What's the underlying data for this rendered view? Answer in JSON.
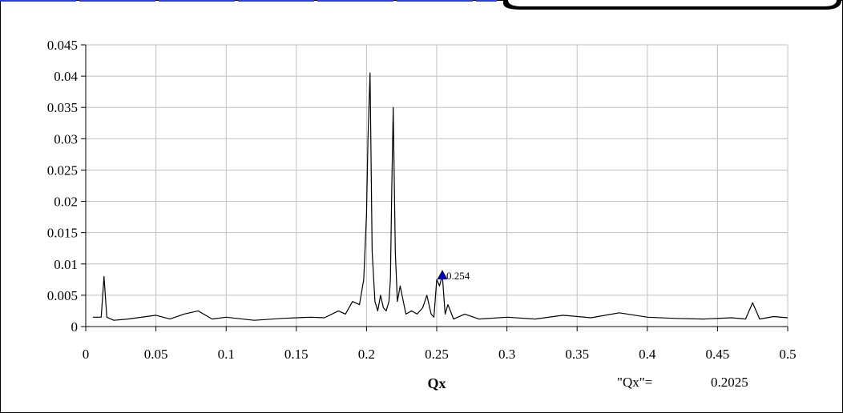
{
  "chart_data": {
    "type": "line",
    "title": "",
    "xlabel": "Qx",
    "ylabel": "",
    "xlim": [
      0,
      0.5
    ],
    "ylim": [
      0,
      0.045
    ],
    "x_ticks": [
      "0",
      "0.05",
      "0.1",
      "0.15",
      "0.2",
      "0.25",
      "0.3",
      "0.35",
      "0.4",
      "0.45",
      "0.5"
    ],
    "y_ticks": [
      "0",
      "0.005",
      "0.01",
      "0.015",
      "0.02",
      "0.025",
      "0.03",
      "0.035",
      "0.04",
      "0.045"
    ],
    "grid": true,
    "line_color": "#000000",
    "marker_color": "#0000cc",
    "series": [
      {
        "x": [
          0.005,
          0.011,
          0.013,
          0.015,
          0.02,
          0.03,
          0.05,
          0.06,
          0.07,
          0.08,
          0.09,
          0.1,
          0.12,
          0.14,
          0.16,
          0.17,
          0.18,
          0.185,
          0.19,
          0.195,
          0.198,
          0.2,
          0.201,
          0.2025,
          0.204,
          0.206,
          0.208,
          0.21,
          0.212,
          0.214,
          0.216,
          0.217,
          0.218,
          0.219,
          0.2205,
          0.222,
          0.224,
          0.228,
          0.232,
          0.236,
          0.24,
          0.243,
          0.246,
          0.248,
          0.25,
          0.252,
          0.254,
          0.256,
          0.258,
          0.262,
          0.27,
          0.28,
          0.3,
          0.32,
          0.34,
          0.36,
          0.38,
          0.4,
          0.42,
          0.44,
          0.46,
          0.47,
          0.475,
          0.48,
          0.49,
          0.5
        ],
        "y": [
          0.0015,
          0.0015,
          0.008,
          0.0015,
          0.001,
          0.0012,
          0.0018,
          0.0012,
          0.002,
          0.0025,
          0.0012,
          0.0015,
          0.001,
          0.0013,
          0.0015,
          0.0014,
          0.0025,
          0.002,
          0.004,
          0.0035,
          0.0075,
          0.018,
          0.03,
          0.0405,
          0.012,
          0.004,
          0.0025,
          0.005,
          0.003,
          0.0025,
          0.004,
          0.0075,
          0.022,
          0.035,
          0.012,
          0.004,
          0.0065,
          0.002,
          0.0025,
          0.002,
          0.003,
          0.005,
          0.002,
          0.0015,
          0.0075,
          0.0065,
          0.0082,
          0.002,
          0.0035,
          0.0012,
          0.002,
          0.0012,
          0.0015,
          0.0012,
          0.0018,
          0.0014,
          0.0022,
          0.0015,
          0.0013,
          0.0012,
          0.0014,
          0.0012,
          0.0038,
          0.0012,
          0.0016,
          0.0014
        ]
      }
    ],
    "annotations": [
      {
        "x": 0.254,
        "y": 0.0082,
        "text": "0.254"
      }
    ]
  },
  "readout": {
    "label": "\"Qx\"=",
    "value": "0.2025"
  }
}
